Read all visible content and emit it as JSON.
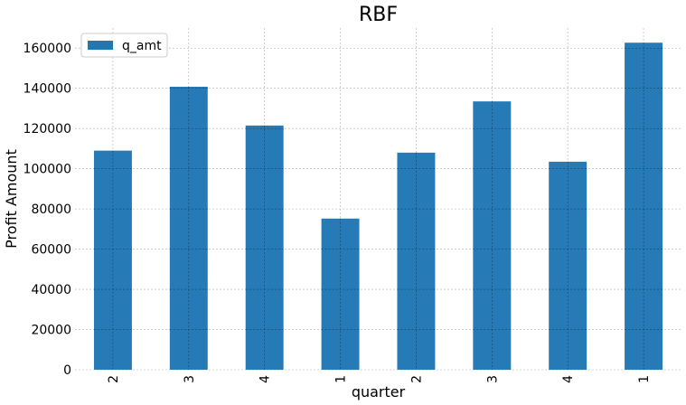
{
  "chart_data": {
    "type": "bar",
    "title": "RBF",
    "xlabel": "quarter",
    "ylabel": "Profit Amount",
    "categories": [
      "2",
      "3",
      "4",
      "1",
      "2",
      "3",
      "4",
      "1"
    ],
    "series": [
      {
        "name": "q_amt",
        "values": [
          109000,
          140800,
          121500,
          75200,
          108000,
          133500,
          103500,
          162700
        ],
        "color": "#1f77b4"
      }
    ],
    "ylim": [
      0,
      170000
    ],
    "yticks": [
      0,
      20000,
      40000,
      60000,
      80000,
      100000,
      120000,
      140000,
      160000
    ],
    "ytick_labels": [
      "0",
      "20000",
      "40000",
      "60000",
      "80000",
      "100000",
      "120000",
      "140000",
      "160000"
    ],
    "grid": true,
    "legend_position": "top-left",
    "x_tick_rotation": "vertical"
  }
}
